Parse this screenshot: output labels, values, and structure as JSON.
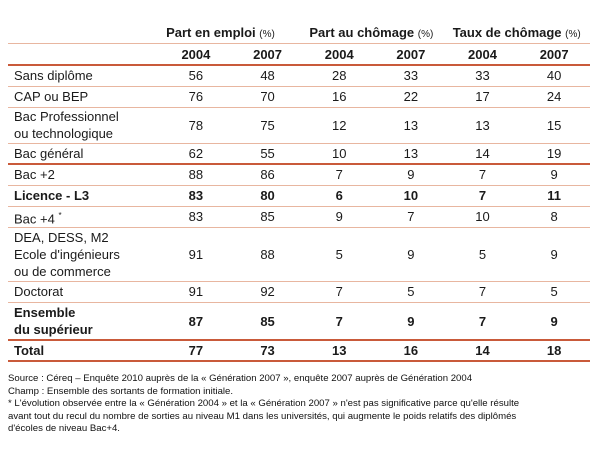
{
  "table": {
    "groups": [
      {
        "title": "Part en emploi",
        "unit": "(%)"
      },
      {
        "title": "Part au chômage",
        "unit": "(%)"
      },
      {
        "title": "Taux de chômage",
        "unit": "(%)"
      }
    ],
    "years": [
      "2004",
      "2007",
      "2004",
      "2007",
      "2004",
      "2007"
    ],
    "rows": [
      {
        "label": [
          "Sans diplôme"
        ],
        "values": [
          "56",
          "48",
          "28",
          "33",
          "33",
          "40"
        ],
        "bold": false
      },
      {
        "label": [
          "CAP ou BEP"
        ],
        "values": [
          "76",
          "70",
          "16",
          "22",
          "17",
          "24"
        ],
        "bold": false
      },
      {
        "label": [
          "Bac Professionnel",
          "ou technologique"
        ],
        "values": [
          "78",
          "75",
          "12",
          "13",
          "13",
          "15"
        ],
        "bold": false
      },
      {
        "label": [
          "Bac général"
        ],
        "values": [
          "62",
          "55",
          "10",
          "13",
          "14",
          "19"
        ],
        "bold": false
      },
      {
        "label": [
          "Bac +2"
        ],
        "values": [
          "88",
          "86",
          "7",
          "9",
          "7",
          "9"
        ],
        "bold": false
      },
      {
        "label": [
          "Licence - L3"
        ],
        "values": [
          "83",
          "80",
          "6",
          "10",
          "7",
          "11"
        ],
        "bold": true
      },
      {
        "label": [
          "Bac +4"
        ],
        "star": "*",
        "values": [
          "83",
          "85",
          "9",
          "7",
          "10",
          "8"
        ],
        "bold": false
      },
      {
        "label": [
          "DEA, DESS, M2",
          "Ecole d'ingénieurs",
          "ou de commerce"
        ],
        "values": [
          "91",
          "88",
          "5",
          "9",
          "5",
          "9"
        ],
        "bold": false
      },
      {
        "label": [
          "Doctorat"
        ],
        "values": [
          "91",
          "92",
          "7",
          "5",
          "7",
          "5"
        ],
        "bold": false
      },
      {
        "label": [
          "Ensemble",
          "du supérieur"
        ],
        "values": [
          "87",
          "85",
          "7",
          "9",
          "7",
          "9"
        ],
        "bold": true
      },
      {
        "label": [
          "Total"
        ],
        "values": [
          "77",
          "73",
          "13",
          "16",
          "14",
          "18"
        ],
        "bold": true
      }
    ]
  },
  "notes": [
    "Source : Céreq – Enquête 2010 auprès de la « Génération 2007 », enquête 2007 auprès de Génération 2004",
    "Champ : Ensemble des sortants de formation initiale.",
    "* L'évolution observée entre la « Génération 2004 » et la « Génération 2007 » n'est pas significative parce qu'elle résulte",
    "avant tout du recul du nombre de sorties au niveau M1 dans les universités, qui augmente le poids relatifs des diplômés",
    "d'écoles de niveau Bac+4."
  ]
}
